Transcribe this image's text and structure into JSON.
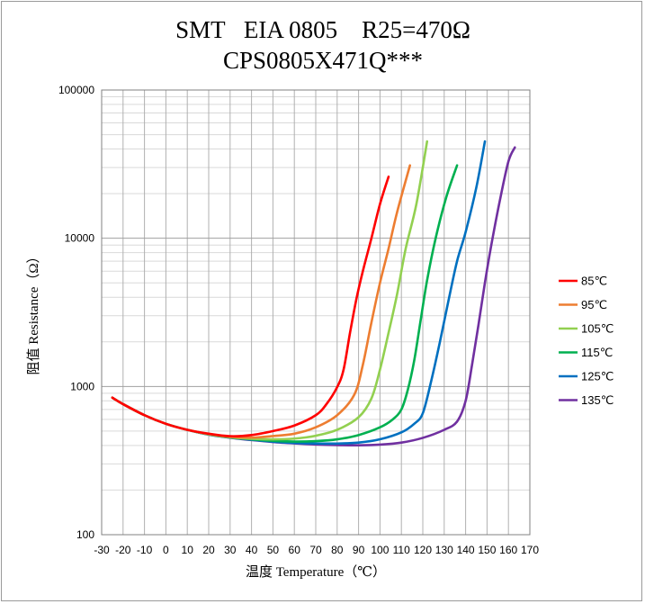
{
  "chart_data": {
    "type": "line",
    "title_lines": [
      "SMT   EIA 0805    R25=470Ω",
      "CPS0805X471Q***"
    ],
    "xlabel": "温度 Temperature（℃）",
    "ylabel": "阻值 Resistance（Ω）",
    "x_scale": "linear",
    "y_scale": "log",
    "xlim": [
      -30,
      170
    ],
    "ylim": [
      100,
      100000
    ],
    "x_ticks": [
      -30,
      -20,
      -10,
      0,
      10,
      20,
      30,
      40,
      50,
      60,
      70,
      80,
      90,
      100,
      110,
      120,
      130,
      140,
      150,
      160,
      170
    ],
    "x_tick_labels": [
      "-30",
      "-20",
      "-10",
      "0",
      "10",
      "20",
      "30",
      "40",
      "50",
      "60",
      "70",
      "80",
      "90",
      "100",
      "110",
      "120",
      "130",
      "140",
      "150",
      "160",
      "170"
    ],
    "y_ticks": [
      100,
      1000,
      10000,
      100000
    ],
    "y_tick_labels": [
      "100",
      "1000",
      "10000",
      "100000"
    ],
    "grid": true,
    "legend_position": "right",
    "series": [
      {
        "name": "85℃",
        "color": "#ff0000",
        "points": [
          [
            -25,
            840
          ],
          [
            -20,
            760
          ],
          [
            -10,
            640
          ],
          [
            0,
            560
          ],
          [
            10,
            510
          ],
          [
            20,
            480
          ],
          [
            30,
            462
          ],
          [
            40,
            470
          ],
          [
            50,
            500
          ],
          [
            60,
            545
          ],
          [
            70,
            640
          ],
          [
            75,
            760
          ],
          [
            80,
            990
          ],
          [
            83,
            1300
          ],
          [
            86,
            2300
          ],
          [
            89,
            3900
          ],
          [
            92,
            6000
          ],
          [
            96,
            10000
          ],
          [
            100,
            17000
          ],
          [
            104,
            26000
          ]
        ]
      },
      {
        "name": "95℃",
        "color": "#ed7d31",
        "points": [
          [
            -25,
            840
          ],
          [
            -20,
            760
          ],
          [
            -10,
            640
          ],
          [
            0,
            560
          ],
          [
            10,
            510
          ],
          [
            20,
            478
          ],
          [
            30,
            458
          ],
          [
            40,
            452
          ],
          [
            50,
            463
          ],
          [
            60,
            480
          ],
          [
            70,
            530
          ],
          [
            80,
            640
          ],
          [
            88,
            880
          ],
          [
            92,
            1400
          ],
          [
            96,
            2700
          ],
          [
            100,
            5000
          ],
          [
            104,
            8500
          ],
          [
            108,
            15000
          ],
          [
            114,
            31000
          ]
        ]
      },
      {
        "name": "105℃",
        "color": "#92d050",
        "points": [
          [
            -25,
            840
          ],
          [
            -20,
            760
          ],
          [
            -10,
            640
          ],
          [
            0,
            560
          ],
          [
            10,
            510
          ],
          [
            20,
            476
          ],
          [
            30,
            455
          ],
          [
            40,
            444
          ],
          [
            50,
            440
          ],
          [
            60,
            445
          ],
          [
            70,
            465
          ],
          [
            80,
            510
          ],
          [
            90,
            620
          ],
          [
            96,
            830
          ],
          [
            100,
            1300
          ],
          [
            104,
            2300
          ],
          [
            108,
            4200
          ],
          [
            112,
            8500
          ],
          [
            117,
            17000
          ],
          [
            122,
            45000
          ]
        ]
      },
      {
        "name": "115℃",
        "color": "#00b050",
        "points": [
          [
            -25,
            840
          ],
          [
            -20,
            760
          ],
          [
            -10,
            640
          ],
          [
            0,
            560
          ],
          [
            10,
            510
          ],
          [
            20,
            475
          ],
          [
            30,
            453
          ],
          [
            40,
            440
          ],
          [
            50,
            430
          ],
          [
            60,
            425
          ],
          [
            70,
            428
          ],
          [
            80,
            440
          ],
          [
            90,
            470
          ],
          [
            100,
            530
          ],
          [
            106,
            600
          ],
          [
            110,
            700
          ],
          [
            113,
            950
          ],
          [
            116,
            1500
          ],
          [
            119,
            2800
          ],
          [
            122,
            5200
          ],
          [
            126,
            10000
          ],
          [
            131,
            19000
          ],
          [
            136,
            31000
          ]
        ]
      },
      {
        "name": "125℃",
        "color": "#0070c0",
        "points": [
          [
            -25,
            840
          ],
          [
            -20,
            760
          ],
          [
            -10,
            640
          ],
          [
            0,
            560
          ],
          [
            10,
            510
          ],
          [
            20,
            474
          ],
          [
            30,
            452
          ],
          [
            40,
            437
          ],
          [
            50,
            424
          ],
          [
            60,
            416
          ],
          [
            70,
            412
          ],
          [
            80,
            412
          ],
          [
            90,
            418
          ],
          [
            100,
            440
          ],
          [
            110,
            490
          ],
          [
            116,
            560
          ],
          [
            120,
            660
          ],
          [
            124,
            1100
          ],
          [
            128,
            2000
          ],
          [
            132,
            3800
          ],
          [
            136,
            7000
          ],
          [
            140,
            11000
          ],
          [
            145,
            22000
          ],
          [
            149,
            45000
          ]
        ]
      },
      {
        "name": "135℃",
        "color": "#7030a0",
        "points": [
          [
            -25,
            840
          ],
          [
            -20,
            760
          ],
          [
            -10,
            640
          ],
          [
            0,
            560
          ],
          [
            10,
            510
          ],
          [
            20,
            473
          ],
          [
            30,
            451
          ],
          [
            40,
            435
          ],
          [
            50,
            422
          ],
          [
            60,
            413
          ],
          [
            70,
            406
          ],
          [
            80,
            402
          ],
          [
            90,
            401
          ],
          [
            100,
            405
          ],
          [
            110,
            418
          ],
          [
            120,
            450
          ],
          [
            130,
            510
          ],
          [
            136,
            580
          ],
          [
            140,
            800
          ],
          [
            143,
            1400
          ],
          [
            146,
            2600
          ],
          [
            149,
            5000
          ],
          [
            152,
            9000
          ],
          [
            156,
            18000
          ],
          [
            160,
            33000
          ],
          [
            163,
            41000
          ]
        ]
      }
    ]
  }
}
